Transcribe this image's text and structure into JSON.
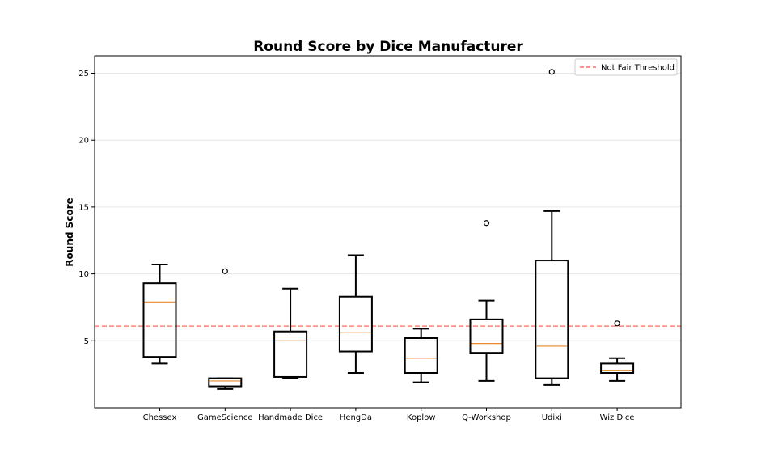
{
  "chart_data": {
    "type": "box",
    "title": "Round Score by Dice Manufacturer",
    "xlabel": "",
    "ylabel": "Round Score",
    "ylim": [
      0,
      26.3
    ],
    "yticks": [
      5,
      10,
      15,
      20,
      25
    ],
    "grid": "horizontal",
    "categories": [
      "Chessex",
      "GameScience",
      "Handmade Dice",
      "HengDa",
      "Koplow",
      "Q-Workshop",
      "Udixi",
      "Wiz Dice"
    ],
    "boxes": [
      {
        "whislo": 3.3,
        "q1": 3.8,
        "med": 7.9,
        "q3": 9.3,
        "whishi": 10.7,
        "fliers": []
      },
      {
        "whislo": 1.4,
        "q1": 1.6,
        "med": 2.0,
        "q3": 2.2,
        "whishi": 2.2,
        "fliers": [
          10.2
        ]
      },
      {
        "whislo": 2.2,
        "q1": 2.3,
        "med": 5.0,
        "q3": 5.7,
        "whishi": 8.9,
        "fliers": []
      },
      {
        "whislo": 2.6,
        "q1": 4.2,
        "med": 5.6,
        "q3": 8.3,
        "whishi": 11.4,
        "fliers": []
      },
      {
        "whislo": 1.9,
        "q1": 2.6,
        "med": 3.7,
        "q3": 5.2,
        "whishi": 5.9,
        "fliers": []
      },
      {
        "whislo": 2.0,
        "q1": 4.1,
        "med": 4.8,
        "q3": 6.6,
        "whishi": 8.0,
        "fliers": [
          13.8
        ]
      },
      {
        "whislo": 1.7,
        "q1": 2.2,
        "med": 4.6,
        "q3": 11.0,
        "whishi": 14.7,
        "fliers": [
          25.1
        ]
      },
      {
        "whislo": 2.0,
        "q1": 2.6,
        "med": 2.8,
        "q3": 3.3,
        "whishi": 3.7,
        "fliers": [
          6.3
        ]
      }
    ],
    "reference_line": {
      "value": 6.1,
      "label": "Not Fair Threshold",
      "color": "#ff6f61"
    },
    "legend": {
      "position": "top-right"
    },
    "colors": {
      "box": "#000000",
      "median": "#e8892c",
      "grid": "#e6e6e6"
    }
  }
}
